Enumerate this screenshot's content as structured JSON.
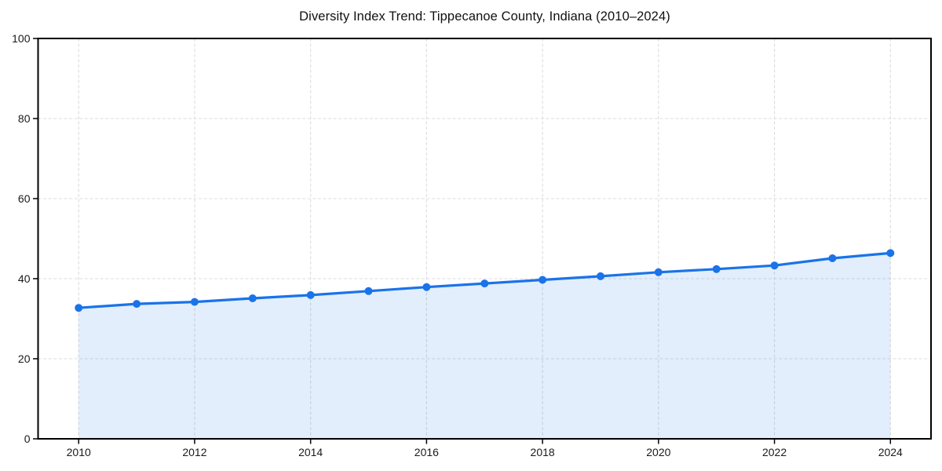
{
  "page": {
    "background": "#ffffff"
  },
  "chart_data": {
    "type": "area",
    "title": "Diversity Index Trend: Tippecanoe County, Indiana (2010–2024)",
    "x": [
      2010,
      2011,
      2012,
      2013,
      2014,
      2015,
      2016,
      2017,
      2018,
      2019,
      2020,
      2021,
      2022,
      2023,
      2024
    ],
    "series": [
      {
        "name": "Diversity Index",
        "values": [
          32.7,
          33.7,
          34.2,
          35.1,
          35.9,
          36.9,
          37.9,
          38.8,
          39.7,
          40.6,
          41.6,
          42.4,
          43.3,
          45.1,
          46.4
        ]
      }
    ],
    "xlabel": "",
    "ylabel": "",
    "xlim": [
      2009.3,
      2024.7
    ],
    "ylim": [
      0,
      100
    ],
    "xticks": [
      "2010",
      "2012",
      "2014",
      "2016",
      "2018",
      "2020",
      "2022",
      "2024"
    ],
    "xtick_values": [
      2010,
      2012,
      2014,
      2016,
      2018,
      2020,
      2022,
      2024
    ],
    "yticks": [
      "0",
      "20",
      "40",
      "60",
      "80",
      "100"
    ],
    "ytick_values": [
      0,
      20,
      40,
      60,
      80,
      100
    ],
    "grid": true,
    "grid_style": "dashed",
    "legend": false,
    "marker": "circle",
    "colors": {
      "line": "#1a73e8",
      "fill": "#1a73e8",
      "fill_opacity": 0.12,
      "grid": "#dcdcdc",
      "spine": "#000000",
      "tick_text": "#1a1a1a",
      "title_text": "#111111"
    }
  }
}
